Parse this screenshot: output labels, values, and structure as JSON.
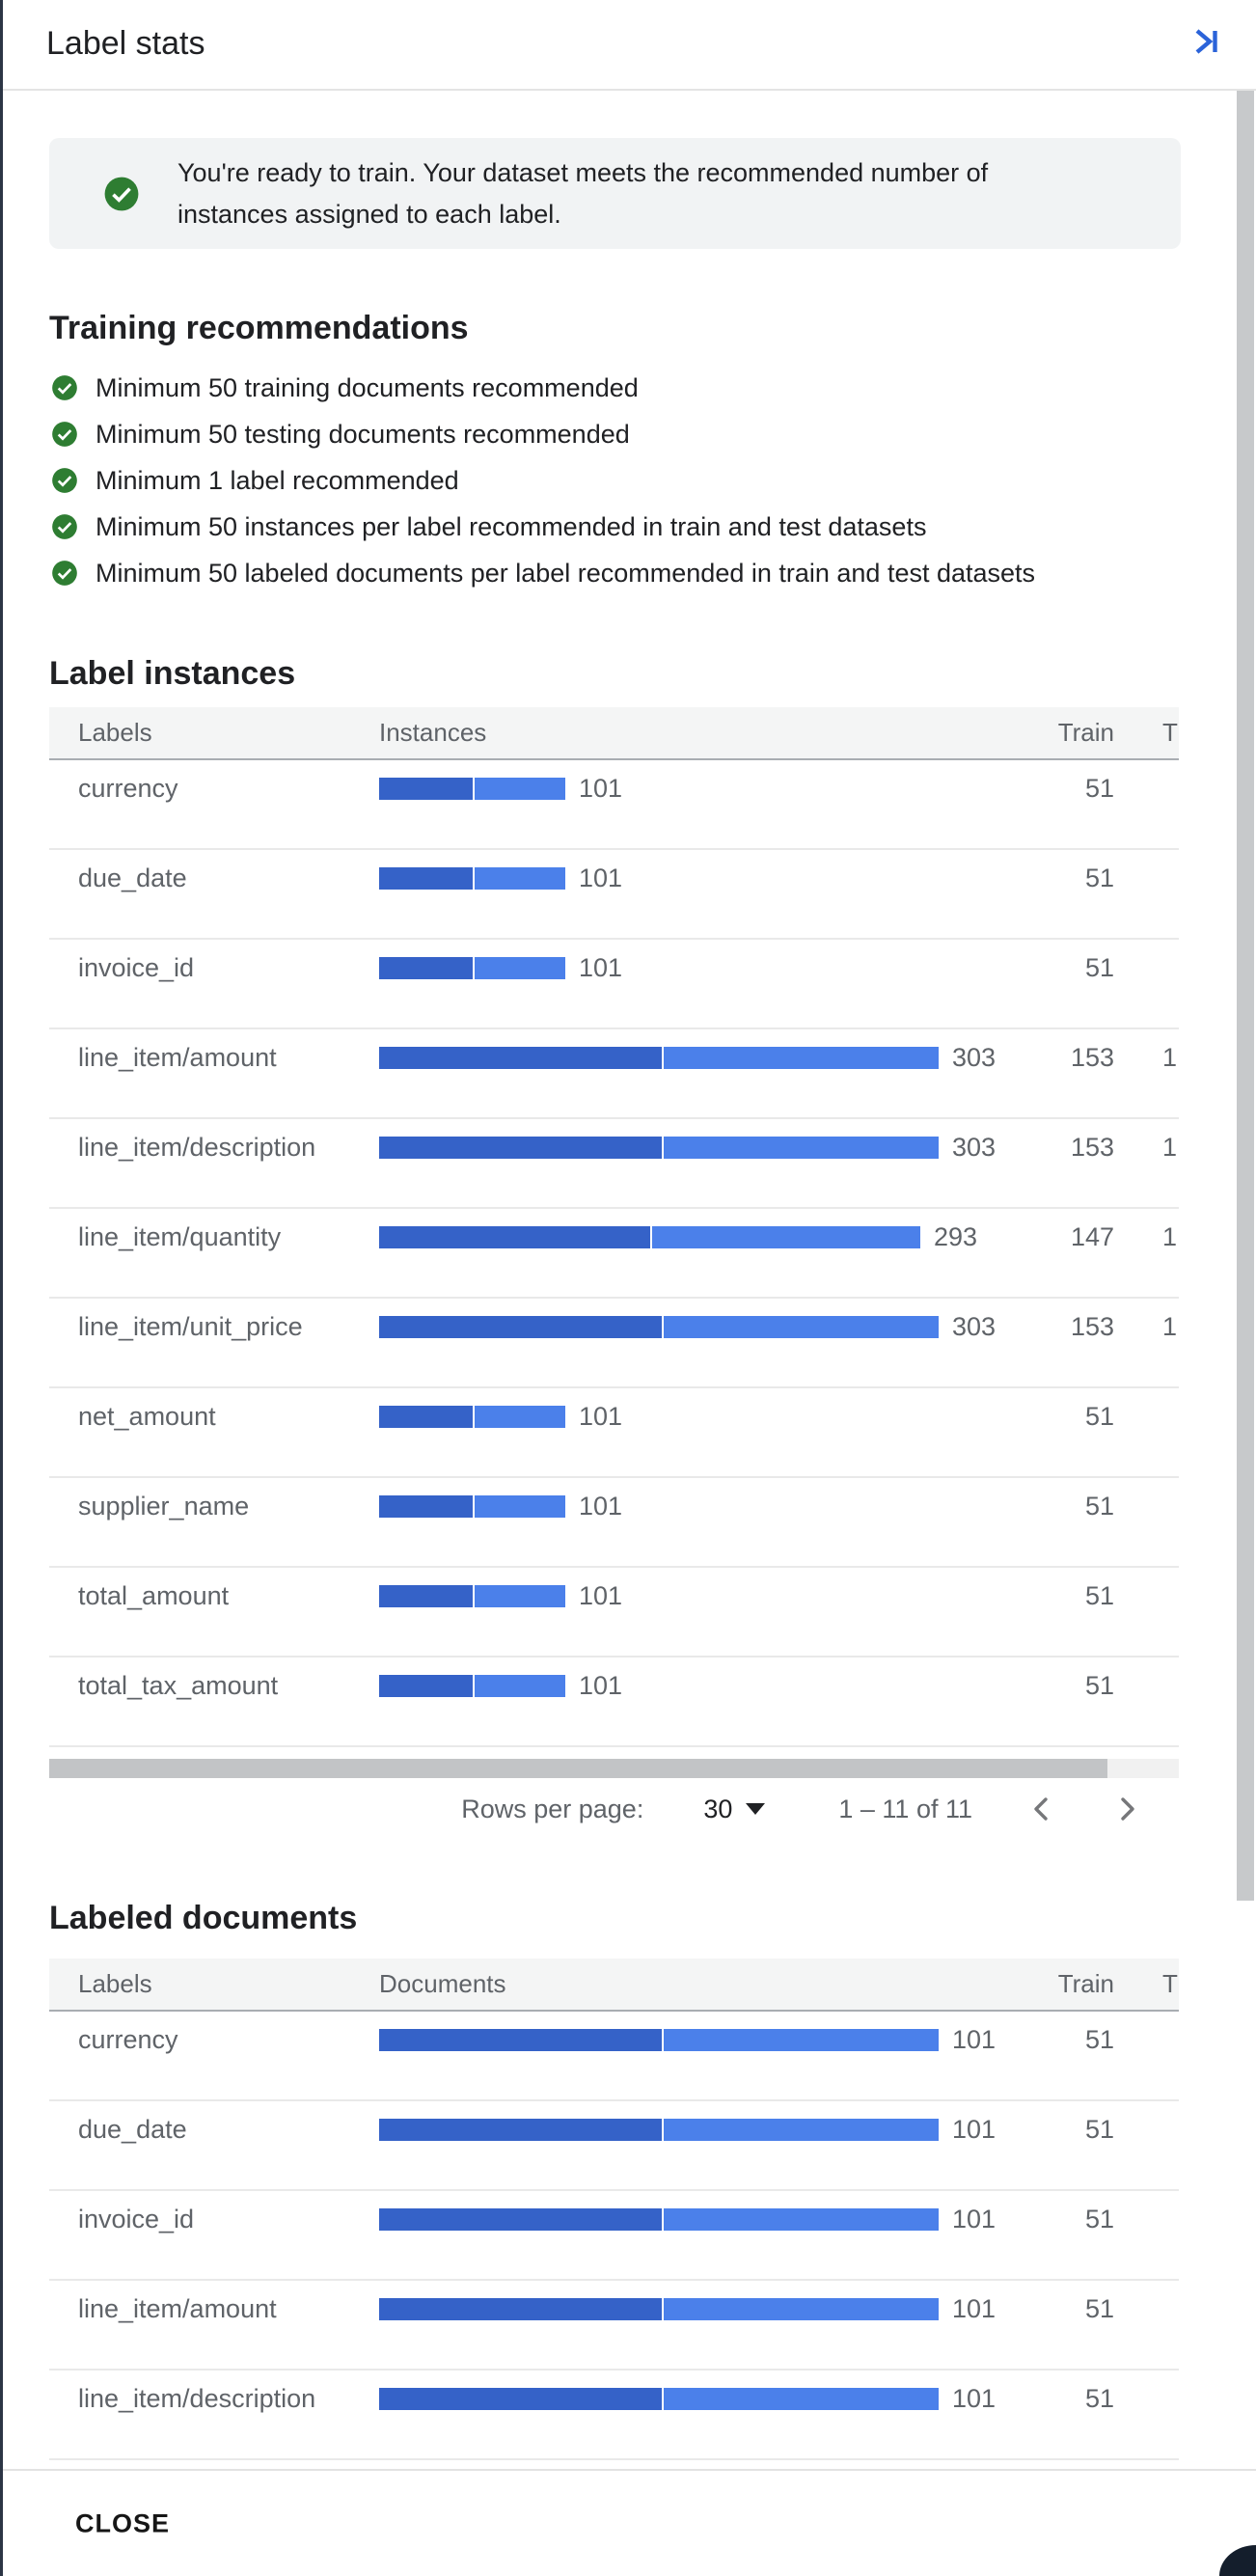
{
  "panel": {
    "title": "Label stats",
    "close_label": "CLOSE"
  },
  "colors": {
    "accent_blue": "#2b63d9",
    "success_green": "#2e7d32",
    "bar_train": "#3562c8",
    "bar_test": "#4b80ea",
    "banner_background": "#f1f3f4",
    "table_text_gray": "#5f6368"
  },
  "banner": {
    "icon": "check-circle-icon",
    "text": "You're ready to train. Your dataset meets the recommended number of instances assigned to each label."
  },
  "recommendations": {
    "title": "Training recommendations",
    "items": [
      "Minimum 50 training documents recommended",
      "Minimum 50 testing documents recommended",
      "Minimum 1 label recommended",
      "Minimum 50 instances per label recommended in train and test datasets",
      "Minimum 50 labeled documents per label recommended in train and test datasets"
    ]
  },
  "label_instances": {
    "title": "Label instances",
    "columns": [
      "Labels",
      "Instances",
      "Train",
      "T"
    ],
    "max_value": 303,
    "rows": [
      {
        "label": "currency",
        "value": 101,
        "train": 51,
        "test_clipped": ""
      },
      {
        "label": "due_date",
        "value": 101,
        "train": 51,
        "test_clipped": ""
      },
      {
        "label": "invoice_id",
        "value": 101,
        "train": 51,
        "test_clipped": ""
      },
      {
        "label": "line_item/amount",
        "value": 303,
        "train": 153,
        "test_clipped": "1"
      },
      {
        "label": "line_item/description",
        "value": 303,
        "train": 153,
        "test_clipped": "1"
      },
      {
        "label": "line_item/quantity",
        "value": 293,
        "train": 147,
        "test_clipped": "1"
      },
      {
        "label": "line_item/unit_price",
        "value": 303,
        "train": 153,
        "test_clipped": "1"
      },
      {
        "label": "net_amount",
        "value": 101,
        "train": 51,
        "test_clipped": ""
      },
      {
        "label": "supplier_name",
        "value": 101,
        "train": 51,
        "test_clipped": ""
      },
      {
        "label": "total_amount",
        "value": 101,
        "train": 51,
        "test_clipped": ""
      },
      {
        "label": "total_tax_amount",
        "value": 101,
        "train": 51,
        "test_clipped": ""
      }
    ]
  },
  "pagination": {
    "rows_per_page_label": "Rows per page:",
    "rows_per_page_value": "30",
    "range_label": "1 – 11 of 11",
    "prev_icon": "chevron-left-icon",
    "next_icon": "chevron-right-icon"
  },
  "labeled_documents": {
    "title": "Labeled documents",
    "columns": [
      "Labels",
      "Documents",
      "Train",
      "T"
    ],
    "max_value": 101,
    "rows": [
      {
        "label": "currency",
        "value": 101,
        "train": 51,
        "test_clipped": ""
      },
      {
        "label": "due_date",
        "value": 101,
        "train": 51,
        "test_clipped": ""
      },
      {
        "label": "invoice_id",
        "value": 101,
        "train": 51,
        "test_clipped": ""
      },
      {
        "label": "line_item/amount",
        "value": 101,
        "train": 51,
        "test_clipped": ""
      },
      {
        "label": "line_item/description",
        "value": 101,
        "train": 51,
        "test_clipped": ""
      }
    ]
  }
}
